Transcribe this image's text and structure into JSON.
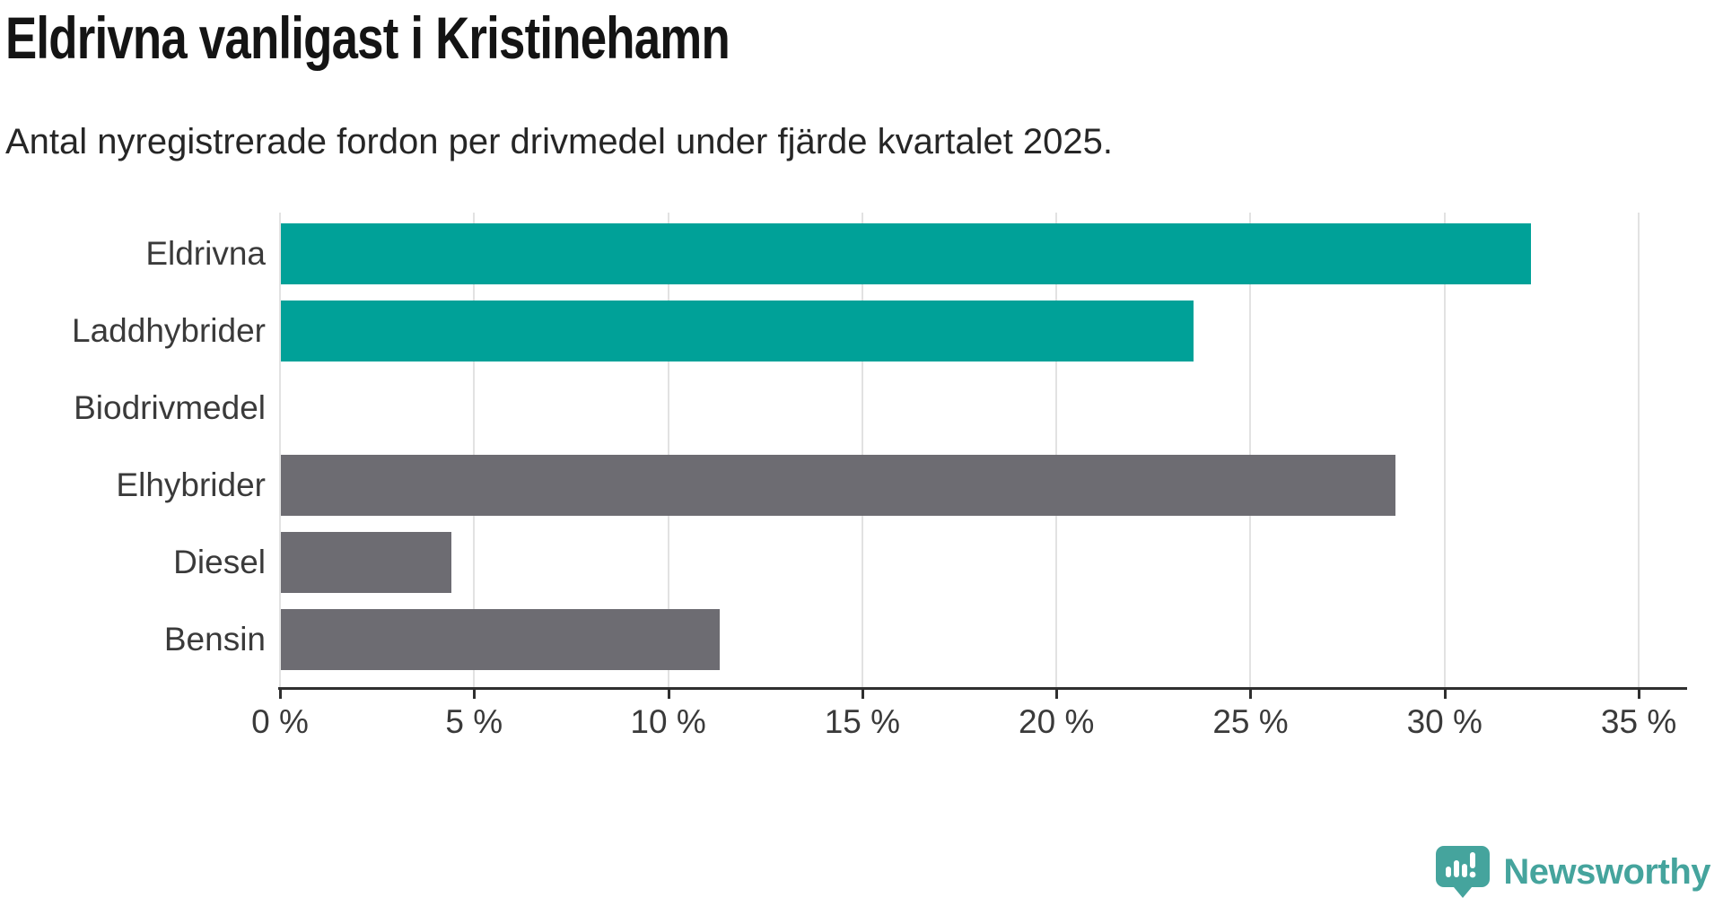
{
  "header": {
    "title": "Eldrivna vanligast i Kristinehamn",
    "subtitle": "Antal nyregistrerade fordon per drivmedel under fjärde kvartalet 2025."
  },
  "chart_data": {
    "type": "bar",
    "orientation": "horizontal",
    "title": "Eldrivna vanligast i Kristinehamn",
    "subtitle": "Antal nyregistrerade fordon per drivmedel under fjärde kvartalet 2025.",
    "categories": [
      "Eldrivna",
      "Laddhybrider",
      "Biodrivmedel",
      "Elhybrider",
      "Diesel",
      "Bensin"
    ],
    "values": [
      32.2,
      23.5,
      0,
      28.7,
      4.4,
      11.3
    ],
    "unit": "%",
    "bar_colors": [
      "#00a198",
      "#00a198",
      "#6d6c72",
      "#6d6c72",
      "#6d6c72",
      "#6d6c72"
    ],
    "x_tick_labels": [
      "0 %",
      "5 %",
      "10 %",
      "15 %",
      "20 %",
      "25 %",
      "30 %",
      "35 %"
    ],
    "x_tick_values": [
      0,
      5,
      10,
      15,
      20,
      25,
      30,
      35
    ],
    "xlim": [
      0,
      36.2
    ],
    "xlabel": "",
    "ylabel": "",
    "grid": true,
    "legend": false
  },
  "colors": {
    "bar_highlight": "#00a198",
    "bar_default": "#6d6c72",
    "gridline": "#e2e2e2",
    "axis": "#2f2f2f",
    "label_text": "#3a3a3a",
    "logo_teal": "#45a49d"
  },
  "branding": {
    "logo_text": "Newsworthy"
  }
}
